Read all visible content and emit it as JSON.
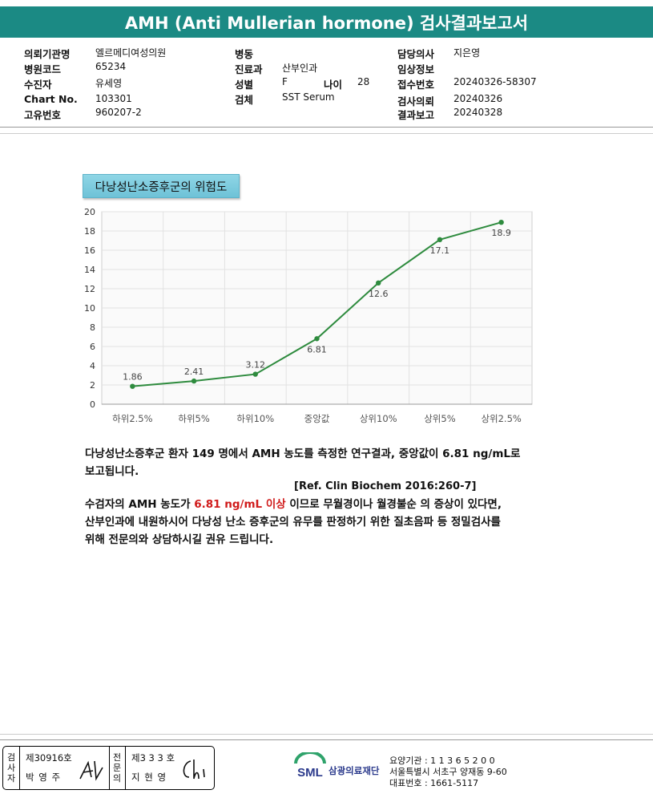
{
  "title": "AMH (Anti Mullerian hormone) 검사결과보고서",
  "header": {
    "col1": [
      {
        "label": "의뢰기관명",
        "value": "엘르메디여성의원"
      },
      {
        "label": "병원코드",
        "value": "65234"
      },
      {
        "label": "수진자",
        "value": "유세영"
      },
      {
        "label": "Chart No.",
        "value": "103301"
      },
      {
        "label": "고유번호",
        "value": "960207-2"
      }
    ],
    "col2": [
      {
        "label": "병동",
        "value": ""
      },
      {
        "label": "진료과",
        "value": "산부인과"
      },
      {
        "label": "성별",
        "value": "F"
      },
      {
        "label": "검체",
        "value": "SST Serum"
      }
    ],
    "age_label": "나이",
    "age_value": "28",
    "col3": [
      {
        "label": "담당의사",
        "value": "지은영"
      },
      {
        "label": "임상정보",
        "value": ""
      },
      {
        "label": "접수번호",
        "value": "20240326-58307"
      },
      {
        "label": "검사의뢰",
        "value": "20240326"
      },
      {
        "label": "결과보고",
        "value": "20240328"
      }
    ]
  },
  "section_title": "다낭성난소증후군의 위험도",
  "chart_data": {
    "type": "line",
    "categories": [
      "하위2.5%",
      "하위5%",
      "하위10%",
      "중앙값",
      "상위10%",
      "상위5%",
      "상위2.5%"
    ],
    "values": [
      1.86,
      2.41,
      3.12,
      6.81,
      12.6,
      17.1,
      18.9
    ],
    "data_labels": [
      "1.86",
      "2.41",
      "3.12",
      "6.81",
      "12.6",
      "17.1",
      "18.9"
    ],
    "yticks": [
      "0",
      "2",
      "4",
      "6",
      "8",
      "10",
      "12",
      "14",
      "16",
      "18",
      "20"
    ],
    "ylim": [
      0,
      20
    ],
    "grid": true,
    "line_color": "#2e8b3e",
    "title": "",
    "xlabel": "",
    "ylabel": ""
  },
  "text": {
    "para1_line1": "다낭성난소증후군 환자 149 명에서 AMH 농도를 측정한 연구결과, 중앙값이 6.81 ng/mL로",
    "para1_line2": "보고됩니다.",
    "reference": "[Ref. Clin Biochem 2016:260-7]",
    "para2_line1_a": "수검자의 AMH 농도가 ",
    "para2_line1_highlight": "6.81 ng/mL 이상",
    "para2_line1_b": " 이므로 무월경이나 월경불순 의 증상이 있다면,",
    "para2_line2": "산부인과에 내원하시어 다낭성 난소 증후군의 유무를 판정하기 위한 질초음파 등 정밀검사를",
    "para2_line3": "위해 전문의와 상담하시길 권유 드립니다.",
    "highlight_color": "#d01b1b"
  },
  "footer": {
    "inspector_label": "검사자",
    "inspector_license": "제30916호",
    "inspector_name": "박 영 주",
    "specialist_label": "전문의",
    "specialist_license": "제3 3 3 호",
    "specialist_name": "지 현 영",
    "org_name": "삼광의료재단",
    "logo_text": "SML",
    "info_line1": "요양기관 : 1 1 3 6 5 2 0 0",
    "info_line2": "서울특별시 서초구 양재동 9-60",
    "info_line3": "대표번호 : 1661-5117"
  }
}
